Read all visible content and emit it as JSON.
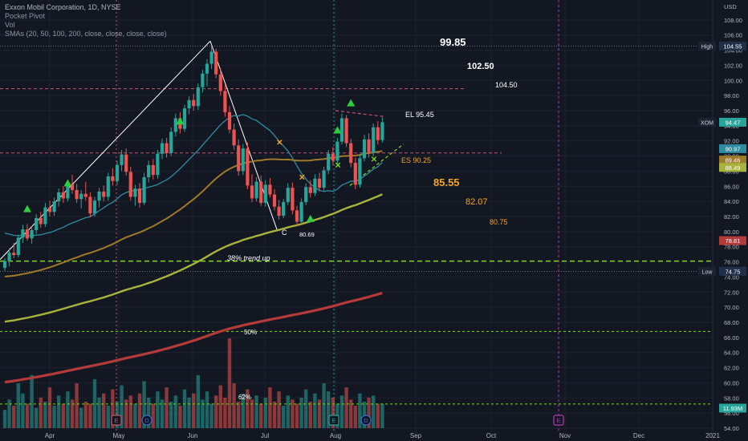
{
  "legend": {
    "title": "Exxon Mobil Corporation, 1D, NYSE",
    "line2": "Pocket Pivot",
    "line3": "Vol",
    "line4": "SMAs (20, 50, 100, 200, close, close, close, close)"
  },
  "currency": "USD",
  "colors": {
    "background": "#131722",
    "candle_up": "#26a69a",
    "candle_down": "#ef5350",
    "sma20": "#2e8ca0",
    "sma50": "#9e7a2a",
    "sma100": "#a8b33c",
    "sma200": "#b53a3a",
    "trendline": "#ffffff",
    "dashed_green": "#7cd61f",
    "dashed_red": "#c2566d",
    "orange_text": "#f5a623",
    "vline_purple": "#b03ab8"
  },
  "chart_data": {
    "type": "candlestick",
    "y_axis": {
      "min": 54,
      "max": 110,
      "ticks": [
        "108.00",
        "106.00",
        "104.00",
        "102.00",
        "100.00",
        "98.00",
        "96.00",
        "94.00",
        "92.00",
        "90.00",
        "88.00",
        "86.00",
        "84.00",
        "82.00",
        "80.00",
        "78.00",
        "76.00",
        "74.00",
        "72.00",
        "70.00",
        "68.00",
        "66.00",
        "64.00",
        "62.00",
        "60.00",
        "58.00",
        "56.00",
        "54.00"
      ]
    },
    "x_axis": {
      "labels": [
        "Apr",
        "May",
        "Jun",
        "Jul",
        "Aug",
        "Sep",
        "Oct",
        "Nov",
        "Dec",
        "2021"
      ]
    },
    "price_tags": [
      {
        "label": "USD",
        "value": "",
        "color": "#131722"
      },
      {
        "label": "High",
        "value": "104.55",
        "color": "#1f2f4a"
      },
      {
        "label": "XOM",
        "value": "94.47",
        "color": "#26a69a"
      },
      {
        "label": "",
        "value": "90.97",
        "color": "#2e8ca0"
      },
      {
        "label": "",
        "value": "89.46",
        "color": "#9e7a2a"
      },
      {
        "label": "",
        "value": "88.49",
        "color": "#a8b33c"
      },
      {
        "label": "",
        "value": "78.81",
        "color": "#b53a3a"
      },
      {
        "label": "Low",
        "value": "74.75",
        "color": "#1f2f4a"
      },
      {
        "label": "",
        "value": "11.93M",
        "color": "#26a69a"
      }
    ],
    "annotations": {
      "targets_up": [
        "99.85",
        "102.50",
        "104.50"
      ],
      "targets_down": [
        "85.55",
        "82.07",
        "80.75"
      ],
      "el": "EL 95.45",
      "es": "ES 90.25",
      "c_label": "C",
      "c_value": "80.69",
      "trend_text": "38% trend up",
      "fib_50": "50%",
      "fib_62": "62%"
    },
    "events": [
      "E",
      "D",
      "E",
      "D",
      "E"
    ],
    "candles": [
      {
        "o": 75.2,
        "h": 76.5,
        "l": 74.8,
        "c": 76.1
      },
      {
        "o": 76.1,
        "h": 77.8,
        "l": 75.4,
        "c": 77.2
      },
      {
        "o": 77.2,
        "h": 78.5,
        "l": 76.5,
        "c": 76.9
      },
      {
        "o": 76.9,
        "h": 79.6,
        "l": 76.6,
        "c": 79.2
      },
      {
        "o": 79.2,
        "h": 80.9,
        "l": 78.5,
        "c": 80.3
      },
      {
        "o": 80.3,
        "h": 81.0,
        "l": 78.8,
        "c": 79.1
      },
      {
        "o": 79.1,
        "h": 80.7,
        "l": 78.4,
        "c": 80.2
      },
      {
        "o": 80.2,
        "h": 82.3,
        "l": 79.7,
        "c": 81.8
      },
      {
        "o": 81.8,
        "h": 82.6,
        "l": 80.5,
        "c": 81.0
      },
      {
        "o": 81.0,
        "h": 83.8,
        "l": 80.6,
        "c": 83.2
      },
      {
        "o": 83.2,
        "h": 84.1,
        "l": 82.0,
        "c": 82.6
      },
      {
        "o": 82.6,
        "h": 84.5,
        "l": 82.1,
        "c": 84.0
      },
      {
        "o": 84.0,
        "h": 85.7,
        "l": 83.3,
        "c": 85.2
      },
      {
        "o": 85.2,
        "h": 86.0,
        "l": 83.8,
        "c": 84.4
      },
      {
        "o": 84.4,
        "h": 86.8,
        "l": 84.0,
        "c": 86.3
      },
      {
        "o": 86.3,
        "h": 87.5,
        "l": 85.0,
        "c": 85.5
      },
      {
        "o": 85.5,
        "h": 86.3,
        "l": 83.8,
        "c": 84.3
      },
      {
        "o": 84.3,
        "h": 85.5,
        "l": 83.1,
        "c": 85.0
      },
      {
        "o": 85.0,
        "h": 86.6,
        "l": 84.1,
        "c": 84.6
      },
      {
        "o": 84.6,
        "h": 85.2,
        "l": 81.9,
        "c": 82.4
      },
      {
        "o": 82.4,
        "h": 84.6,
        "l": 82.0,
        "c": 84.1
      },
      {
        "o": 84.1,
        "h": 85.8,
        "l": 83.2,
        "c": 85.3
      },
      {
        "o": 85.3,
        "h": 86.1,
        "l": 84.0,
        "c": 84.6
      },
      {
        "o": 84.6,
        "h": 87.8,
        "l": 84.1,
        "c": 87.3
      },
      {
        "o": 87.3,
        "h": 88.4,
        "l": 86.1,
        "c": 86.7
      },
      {
        "o": 86.7,
        "h": 89.3,
        "l": 86.2,
        "c": 88.8
      },
      {
        "o": 88.8,
        "h": 90.8,
        "l": 88.0,
        "c": 90.2
      },
      {
        "o": 90.2,
        "h": 91.0,
        "l": 87.4,
        "c": 87.9
      },
      {
        "o": 87.9,
        "h": 88.6,
        "l": 84.1,
        "c": 84.6
      },
      {
        "o": 84.6,
        "h": 86.2,
        "l": 83.4,
        "c": 85.7
      },
      {
        "o": 85.7,
        "h": 86.4,
        "l": 83.2,
        "c": 83.8
      },
      {
        "o": 83.8,
        "h": 87.8,
        "l": 83.5,
        "c": 87.2
      },
      {
        "o": 87.2,
        "h": 89.4,
        "l": 86.5,
        "c": 88.8
      },
      {
        "o": 88.8,
        "h": 89.6,
        "l": 86.9,
        "c": 87.5
      },
      {
        "o": 87.5,
        "h": 90.8,
        "l": 87.0,
        "c": 90.3
      },
      {
        "o": 90.3,
        "h": 92.3,
        "l": 89.6,
        "c": 91.7
      },
      {
        "o": 91.7,
        "h": 92.4,
        "l": 89.8,
        "c": 90.4
      },
      {
        "o": 90.4,
        "h": 93.8,
        "l": 90.0,
        "c": 93.2
      },
      {
        "o": 93.2,
        "h": 95.6,
        "l": 92.6,
        "c": 95.0
      },
      {
        "o": 95.0,
        "h": 95.8,
        "l": 93.0,
        "c": 93.6
      },
      {
        "o": 93.6,
        "h": 96.8,
        "l": 93.2,
        "c": 96.3
      },
      {
        "o": 96.3,
        "h": 97.9,
        "l": 95.5,
        "c": 97.4
      },
      {
        "o": 97.4,
        "h": 98.2,
        "l": 96.0,
        "c": 96.6
      },
      {
        "o": 96.6,
        "h": 99.6,
        "l": 96.1,
        "c": 99.1
      },
      {
        "o": 99.1,
        "h": 101.4,
        "l": 98.4,
        "c": 100.9
      },
      {
        "o": 100.9,
        "h": 102.8,
        "l": 99.2,
        "c": 102.2
      },
      {
        "o": 102.2,
        "h": 104.55,
        "l": 101.5,
        "c": 103.8
      },
      {
        "o": 103.8,
        "h": 104.2,
        "l": 100.3,
        "c": 100.8
      },
      {
        "o": 100.8,
        "h": 101.6,
        "l": 98.0,
        "c": 98.6
      },
      {
        "o": 98.6,
        "h": 99.4,
        "l": 95.2,
        "c": 95.8
      },
      {
        "o": 95.8,
        "h": 96.6,
        "l": 93.0,
        "c": 93.5
      },
      {
        "o": 93.5,
        "h": 94.3,
        "l": 90.8,
        "c": 91.4
      },
      {
        "o": 91.4,
        "h": 92.2,
        "l": 87.4,
        "c": 88.0
      },
      {
        "o": 88.0,
        "h": 91.6,
        "l": 87.5,
        "c": 91.0
      },
      {
        "o": 91.0,
        "h": 91.8,
        "l": 85.6,
        "c": 86.1
      },
      {
        "o": 86.1,
        "h": 87.6,
        "l": 83.9,
        "c": 84.4
      },
      {
        "o": 84.4,
        "h": 87.2,
        "l": 84.0,
        "c": 86.6
      },
      {
        "o": 86.6,
        "h": 87.4,
        "l": 83.4,
        "c": 83.8
      },
      {
        "o": 83.8,
        "h": 86.8,
        "l": 83.3,
        "c": 86.2
      },
      {
        "o": 86.2,
        "h": 87.1,
        "l": 84.5,
        "c": 84.9
      },
      {
        "o": 84.9,
        "h": 85.6,
        "l": 82.8,
        "c": 83.3
      },
      {
        "o": 83.3,
        "h": 84.2,
        "l": 81.6,
        "c": 82.1
      },
      {
        "o": 82.1,
        "h": 84.3,
        "l": 81.8,
        "c": 83.9
      },
      {
        "o": 83.9,
        "h": 86.4,
        "l": 83.5,
        "c": 85.8
      },
      {
        "o": 85.8,
        "h": 86.5,
        "l": 82.3,
        "c": 82.8
      },
      {
        "o": 82.8,
        "h": 83.4,
        "l": 80.69,
        "c": 81.3
      },
      {
        "o": 81.3,
        "h": 84.4,
        "l": 81.0,
        "c": 83.9
      },
      {
        "o": 83.9,
        "h": 86.4,
        "l": 83.5,
        "c": 85.9
      },
      {
        "o": 85.9,
        "h": 86.8,
        "l": 84.5,
        "c": 85.1
      },
      {
        "o": 85.1,
        "h": 87.6,
        "l": 84.7,
        "c": 87.0
      },
      {
        "o": 87.0,
        "h": 87.8,
        "l": 85.3,
        "c": 85.8
      },
      {
        "o": 85.8,
        "h": 88.6,
        "l": 85.4,
        "c": 88.1
      },
      {
        "o": 88.1,
        "h": 90.8,
        "l": 87.6,
        "c": 90.3
      },
      {
        "o": 90.3,
        "h": 91.2,
        "l": 88.8,
        "c": 89.4
      },
      {
        "o": 89.4,
        "h": 92.4,
        "l": 89.0,
        "c": 91.9
      },
      {
        "o": 91.9,
        "h": 95.6,
        "l": 91.5,
        "c": 95.0
      },
      {
        "o": 95.0,
        "h": 95.4,
        "l": 91.2,
        "c": 91.7
      },
      {
        "o": 91.7,
        "h": 92.3,
        "l": 88.5,
        "c": 89.1
      },
      {
        "o": 89.1,
        "h": 89.8,
        "l": 85.6,
        "c": 86.2
      },
      {
        "o": 86.2,
        "h": 90.2,
        "l": 85.8,
        "c": 89.7
      },
      {
        "o": 89.7,
        "h": 92.8,
        "l": 89.3,
        "c": 92.2
      },
      {
        "o": 92.2,
        "h": 93.0,
        "l": 89.8,
        "c": 90.4
      },
      {
        "o": 90.4,
        "h": 94.3,
        "l": 90.0,
        "c": 93.8
      },
      {
        "o": 93.8,
        "h": 94.6,
        "l": 91.5,
        "c": 92.1
      },
      {
        "o": 92.1,
        "h": 95.1,
        "l": 91.8,
        "c": 94.47
      }
    ],
    "volume": [
      9,
      14,
      11,
      22,
      17,
      12,
      26,
      10,
      15,
      13,
      20,
      11,
      16,
      12,
      18,
      14,
      22,
      10,
      13,
      12,
      24,
      15,
      17,
      11,
      19,
      13,
      21,
      14,
      16,
      12,
      17,
      23,
      15,
      12,
      18,
      14,
      20,
      13,
      16,
      11,
      19,
      15,
      17,
      26,
      14,
      18,
      12,
      16,
      21,
      15,
      44,
      22,
      13,
      17,
      19,
      14,
      16,
      12,
      15,
      20,
      13,
      18,
      11,
      16,
      14,
      12,
      15,
      19,
      13,
      17,
      14,
      22,
      18,
      15,
      12,
      16,
      20,
      14,
      11,
      17,
      13,
      15,
      16,
      12,
      11.93
    ]
  }
}
